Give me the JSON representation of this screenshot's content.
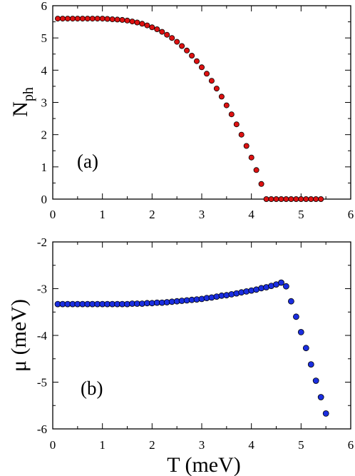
{
  "chart_data": [
    {
      "type": "scatter",
      "panel_label": "(a)",
      "ylabel": "N",
      "ylabel_sub": "ph",
      "xlabel": "",
      "xlim": [
        0,
        6
      ],
      "ylim": [
        0,
        6
      ],
      "xticks": [
        "0",
        "1",
        "2",
        "3",
        "4",
        "5",
        "6"
      ],
      "yticks": [
        "0",
        "1",
        "2",
        "3",
        "4",
        "5",
        "6"
      ],
      "marker_color": "#dd1111",
      "series": [
        {
          "x": [
            0.1,
            0.2,
            0.3,
            0.4,
            0.5,
            0.6,
            0.7,
            0.8,
            0.9,
            1.0,
            1.1,
            1.2,
            1.3,
            1.4,
            1.5,
            1.6,
            1.7,
            1.8,
            1.9,
            2.0,
            2.1,
            2.2,
            2.3,
            2.4,
            2.5,
            2.6,
            2.7,
            2.8,
            2.9,
            3.0,
            3.1,
            3.2,
            3.3,
            3.4,
            3.5,
            3.6,
            3.7,
            3.8,
            3.9,
            4.0,
            4.1,
            4.2,
            4.3,
            4.4,
            4.5,
            4.6,
            4.7,
            4.8,
            4.9,
            5.0,
            5.1,
            5.2,
            5.3,
            5.4
          ],
          "y": [
            5.6,
            5.6,
            5.6,
            5.6,
            5.6,
            5.6,
            5.6,
            5.6,
            5.6,
            5.6,
            5.59,
            5.58,
            5.57,
            5.56,
            5.54,
            5.51,
            5.48,
            5.44,
            5.39,
            5.33,
            5.27,
            5.19,
            5.1,
            5.0,
            4.88,
            4.75,
            4.61,
            4.45,
            4.28,
            4.09,
            3.89,
            3.67,
            3.43,
            3.18,
            2.91,
            2.63,
            2.32,
            2.0,
            1.65,
            1.29,
            0.9,
            0.47,
            0.0,
            0.0,
            0.0,
            0.0,
            0.0,
            0.0,
            0.0,
            0.0,
            0.0,
            0.0,
            0.0,
            0.0
          ]
        }
      ]
    },
    {
      "type": "scatter",
      "panel_label": "(b)",
      "ylabel": "μ (meV)",
      "xlabel": "T (meV)",
      "xlim": [
        0,
        6
      ],
      "ylim": [
        -6,
        -2
      ],
      "xticks": [
        "0",
        "1",
        "2",
        "3",
        "4",
        "5",
        "6"
      ],
      "yticks": [
        "-6",
        "-5",
        "-4",
        "-3",
        "-2"
      ],
      "marker_color": "#1a2ee0",
      "series": [
        {
          "x": [
            0.1,
            0.2,
            0.3,
            0.4,
            0.5,
            0.6,
            0.7,
            0.8,
            0.9,
            1.0,
            1.1,
            1.2,
            1.3,
            1.4,
            1.5,
            1.6,
            1.7,
            1.8,
            1.9,
            2.0,
            2.1,
            2.2,
            2.3,
            2.4,
            2.5,
            2.6,
            2.7,
            2.8,
            2.9,
            3.0,
            3.1,
            3.2,
            3.3,
            3.4,
            3.5,
            3.6,
            3.7,
            3.8,
            3.9,
            4.0,
            4.1,
            4.2,
            4.3,
            4.4,
            4.5,
            4.6,
            4.7,
            4.8,
            4.9,
            5.0,
            5.1,
            5.2,
            5.3,
            5.4,
            5.5
          ],
          "y": [
            -3.33,
            -3.33,
            -3.33,
            -3.33,
            -3.33,
            -3.33,
            -3.33,
            -3.33,
            -3.33,
            -3.33,
            -3.33,
            -3.33,
            -3.33,
            -3.33,
            -3.33,
            -3.32,
            -3.32,
            -3.32,
            -3.31,
            -3.31,
            -3.3,
            -3.3,
            -3.29,
            -3.28,
            -3.27,
            -3.26,
            -3.25,
            -3.24,
            -3.23,
            -3.22,
            -3.2,
            -3.19,
            -3.17,
            -3.15,
            -3.14,
            -3.12,
            -3.1,
            -3.08,
            -3.06,
            -3.04,
            -3.02,
            -2.99,
            -2.97,
            -2.94,
            -2.91,
            -2.87,
            -2.95,
            -3.27,
            -3.6,
            -3.93,
            -4.27,
            -4.62,
            -4.97,
            -5.32,
            -5.67
          ]
        }
      ]
    }
  ]
}
